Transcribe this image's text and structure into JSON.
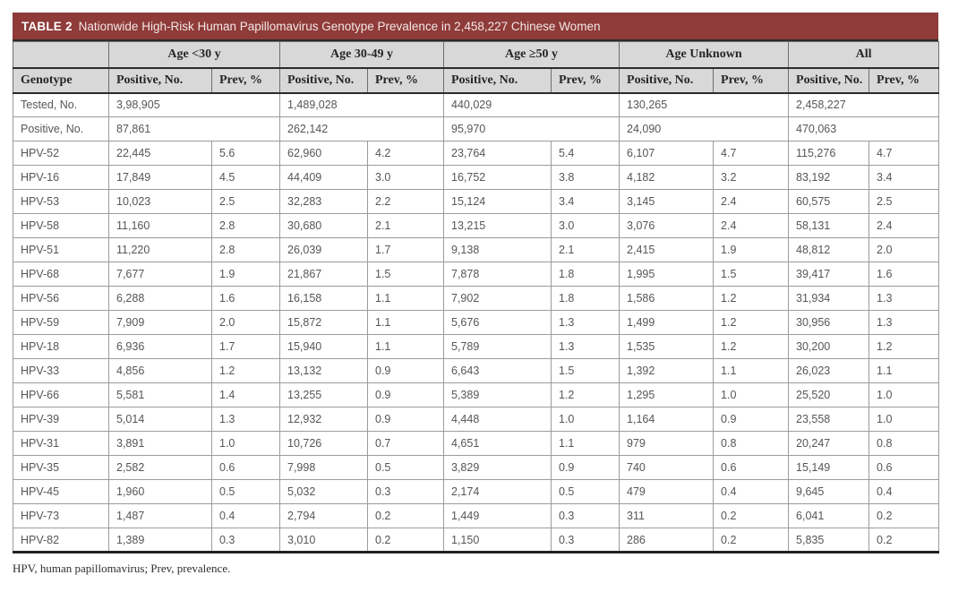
{
  "title": {
    "label": "TABLE 2",
    "text": "Nationwide High-Risk Human Papillomavirus Genotype Prevalence in 2,458,227 Chinese Women"
  },
  "colors": {
    "title_bar_bg": "#8e3b39",
    "header_bg": "#d8d8d8",
    "grid_line": "#9c9c9c",
    "heavy_rule": "#2a2a2a"
  },
  "table": {
    "genotype_header": "Genotype",
    "groups": [
      {
        "label": "Age <30 y"
      },
      {
        "label": "Age 30-49 y"
      },
      {
        "label": "Age ≥50 y"
      },
      {
        "label": "Age Unknown"
      },
      {
        "label": "All"
      }
    ],
    "sub_headers": {
      "positive": "Positive, No.",
      "prev": "Prev, %"
    },
    "summary_rows": [
      {
        "label": "Tested, No.",
        "values": [
          "3,98,905",
          "1,489,028",
          "440,029",
          "130,265",
          "2,458,227"
        ]
      },
      {
        "label": "Positive, No.",
        "values": [
          "87,861",
          "262,142",
          "95,970",
          "24,090",
          "470,063"
        ]
      }
    ],
    "rows": [
      {
        "label": "HPV-52",
        "cells": [
          "22,445",
          "5.6",
          "62,960",
          "4.2",
          "23,764",
          "5.4",
          "6,107",
          "4.7",
          "115,276",
          "4.7"
        ]
      },
      {
        "label": "HPV-16",
        "cells": [
          "17,849",
          "4.5",
          "44,409",
          "3.0",
          "16,752",
          "3.8",
          "4,182",
          "3.2",
          "83,192",
          "3.4"
        ]
      },
      {
        "label": "HPV-53",
        "cells": [
          "10,023",
          "2.5",
          "32,283",
          "2.2",
          "15,124",
          "3.4",
          "3,145",
          "2.4",
          "60,575",
          "2.5"
        ]
      },
      {
        "label": "HPV-58",
        "cells": [
          "11,160",
          "2.8",
          "30,680",
          "2.1",
          "13,215",
          "3.0",
          "3,076",
          "2.4",
          "58,131",
          "2.4"
        ]
      },
      {
        "label": "HPV-51",
        "cells": [
          "11,220",
          "2.8",
          "26,039",
          "1.7",
          "9,138",
          "2.1",
          "2,415",
          "1.9",
          "48,812",
          "2.0"
        ]
      },
      {
        "label": "HPV-68",
        "cells": [
          "7,677",
          "1.9",
          "21,867",
          "1.5",
          "7,878",
          "1.8",
          "1,995",
          "1.5",
          "39,417",
          "1.6"
        ]
      },
      {
        "label": "HPV-56",
        "cells": [
          "6,288",
          "1.6",
          "16,158",
          "1.1",
          "7,902",
          "1.8",
          "1,586",
          "1.2",
          "31,934",
          "1.3"
        ]
      },
      {
        "label": "HPV-59",
        "cells": [
          "7,909",
          "2.0",
          "15,872",
          "1.1",
          "5,676",
          "1.3",
          "1,499",
          "1.2",
          "30,956",
          "1.3"
        ]
      },
      {
        "label": "HPV-18",
        "cells": [
          "6,936",
          "1.7",
          "15,940",
          "1.1",
          "5,789",
          "1.3",
          "1,535",
          "1.2",
          "30,200",
          "1.2"
        ]
      },
      {
        "label": "HPV-33",
        "cells": [
          "4,856",
          "1.2",
          "13,132",
          "0.9",
          "6,643",
          "1.5",
          "1,392",
          "1.1",
          "26,023",
          "1.1"
        ]
      },
      {
        "label": "HPV-66",
        "cells": [
          "5,581",
          "1.4",
          "13,255",
          "0.9",
          "5,389",
          "1.2",
          "1,295",
          "1.0",
          "25,520",
          "1.0"
        ]
      },
      {
        "label": "HPV-39",
        "cells": [
          "5,014",
          "1.3",
          "12,932",
          "0.9",
          "4,448",
          "1.0",
          "1,164",
          "0.9",
          "23,558",
          "1.0"
        ]
      },
      {
        "label": "HPV-31",
        "cells": [
          "3,891",
          "1.0",
          "10,726",
          "0.7",
          "4,651",
          "1.1",
          "979",
          "0.8",
          "20,247",
          "0.8"
        ]
      },
      {
        "label": "HPV-35",
        "cells": [
          "2,582",
          "0.6",
          "7,998",
          "0.5",
          "3,829",
          "0.9",
          "740",
          "0.6",
          "15,149",
          "0.6"
        ]
      },
      {
        "label": "HPV-45",
        "cells": [
          "1,960",
          "0.5",
          "5,032",
          "0.3",
          "2,174",
          "0.5",
          "479",
          "0.4",
          "9,645",
          "0.4"
        ]
      },
      {
        "label": "HPV-73",
        "cells": [
          "1,487",
          "0.4",
          "2,794",
          "0.2",
          "1,449",
          "0.3",
          "311",
          "0.2",
          "6,041",
          "0.2"
        ]
      },
      {
        "label": "HPV-82",
        "cells": [
          "1,389",
          "0.3",
          "3,010",
          "0.2",
          "1,150",
          "0.3",
          "286",
          "0.2",
          "5,835",
          "0.2"
        ]
      }
    ]
  },
  "footnote": "HPV, human papillomavirus; Prev, prevalence."
}
